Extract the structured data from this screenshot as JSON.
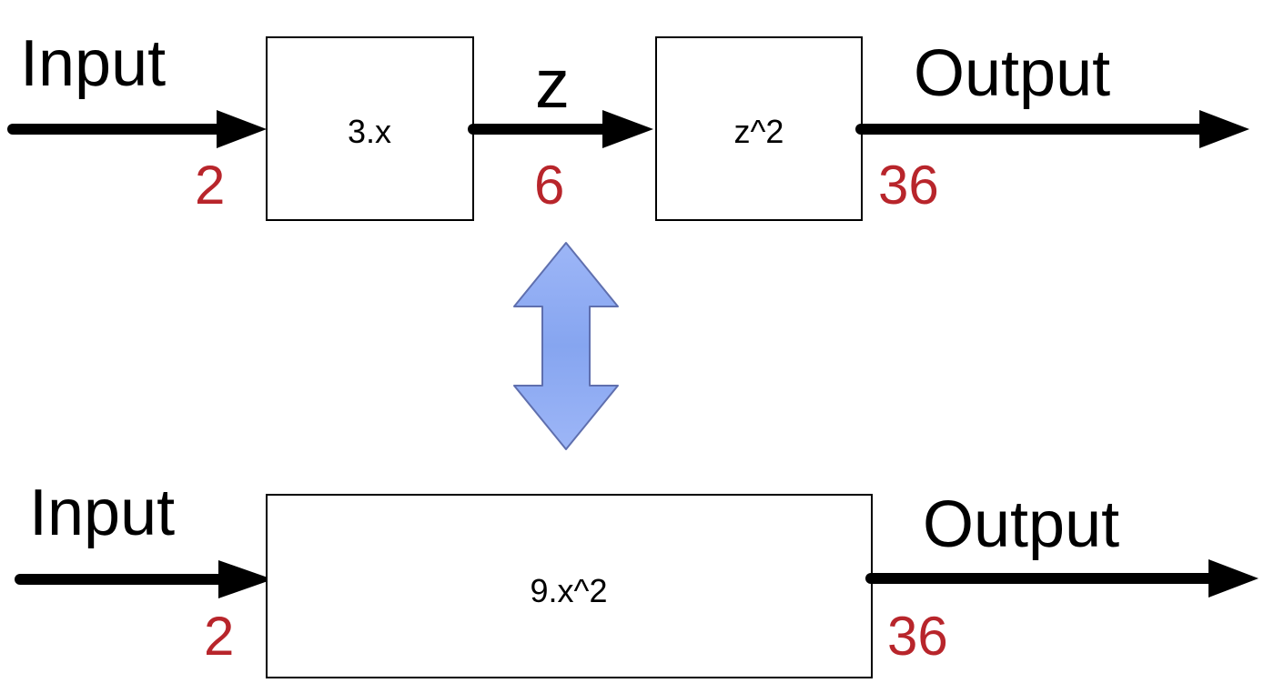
{
  "colors": {
    "stroke": "#000000",
    "value_red": "#b8252b",
    "equivalence_fill": "#8aa9f2",
    "equivalence_stroke": "#5f6fae"
  },
  "top_pipeline": {
    "input_label": "Input",
    "input_value": "2",
    "block1_formula": "3.x",
    "intermediate_label": "z",
    "intermediate_value": "6",
    "block2_formula": "z^2",
    "output_label": "Output",
    "output_value": "36"
  },
  "equivalence_icon": "double-arrow-vertical-icon",
  "bottom_pipeline": {
    "input_label": "Input",
    "input_value": "2",
    "block_formula": "9.x^2",
    "output_label": "Output",
    "output_value": "36"
  }
}
